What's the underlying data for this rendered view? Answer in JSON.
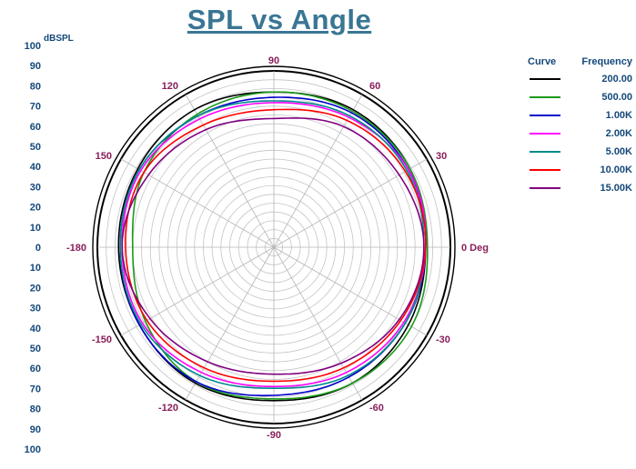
{
  "chart_data": {
    "type": "polar",
    "title": "SPL vs Angle",
    "radial_unit_label": "dBSPL",
    "radial_range": [
      0,
      100
    ],
    "radial_tick_labels": [
      "100",
      "90",
      "80",
      "70",
      "60",
      "50",
      "40",
      "30",
      "20",
      "10",
      "0",
      "10",
      "20",
      "30",
      "40",
      "50",
      "60",
      "70",
      "80",
      "90",
      "100"
    ],
    "angle_labels": [
      {
        "angle": 90,
        "text": "90"
      },
      {
        "angle": 60,
        "text": "60"
      },
      {
        "angle": 120,
        "text": "120"
      },
      {
        "angle": 30,
        "text": "30"
      },
      {
        "angle": 150,
        "text": "150"
      },
      {
        "angle": 0,
        "text": "0 Deg"
      },
      {
        "angle": 180,
        "text": "-180"
      },
      {
        "angle": -30,
        "text": "-30"
      },
      {
        "angle": -150,
        "text": "-150"
      },
      {
        "angle": -60,
        "text": "-60"
      },
      {
        "angle": -120,
        "text": "-120"
      },
      {
        "angle": -90,
        "text": "-90"
      }
    ],
    "legend": {
      "header_curve": "Curve",
      "header_frequency": "Frequency"
    },
    "series": [
      {
        "name": "200.00",
        "color": "#000000",
        "angles": [
          0,
          30,
          60,
          90,
          120,
          150,
          180,
          -150,
          -120,
          -90,
          -60,
          -30
        ],
        "values": [
          86,
          89,
          90,
          88,
          90,
          89,
          88,
          88,
          89,
          87,
          89,
          88
        ]
      },
      {
        "name": "500.00",
        "color": "#1a9a1a",
        "angles": [
          0,
          30,
          60,
          90,
          120,
          150,
          180,
          -150,
          -120,
          -90,
          -60,
          -30
        ],
        "values": [
          87,
          89,
          89,
          88,
          87,
          85,
          80,
          84,
          88,
          86,
          89,
          90
        ]
      },
      {
        "name": "1.00K",
        "color": "#0000cc",
        "angles": [
          0,
          30,
          60,
          90,
          120,
          150,
          180,
          -150,
          -120,
          -90,
          -60,
          -30
        ],
        "values": [
          86,
          88,
          88,
          85,
          86,
          88,
          87,
          88,
          88,
          84,
          85,
          86
        ]
      },
      {
        "name": "2.00K",
        "color": "#ff00ff",
        "angles": [
          0,
          30,
          60,
          90,
          120,
          150,
          180,
          -150,
          -120,
          -90,
          -60,
          -30
        ],
        "values": [
          86,
          88,
          85,
          82,
          84,
          87,
          86,
          86,
          82,
          79,
          82,
          85
        ]
      },
      {
        "name": "5.00K",
        "color": "#008b8b",
        "angles": [
          0,
          30,
          60,
          90,
          120,
          150,
          180,
          -150,
          -120,
          -90,
          -60,
          -30
        ],
        "values": [
          85,
          87,
          86,
          83,
          86,
          88,
          87,
          87,
          84,
          80,
          84,
          86
        ]
      },
      {
        "name": "10.00K",
        "color": "#ff0000",
        "angles": [
          0,
          30,
          60,
          90,
          120,
          150,
          180,
          -150,
          -120,
          -90,
          -60,
          -30
        ],
        "values": [
          86,
          86,
          83,
          78,
          80,
          85,
          84,
          83,
          79,
          76,
          79,
          83
        ]
      },
      {
        "name": "15.00K",
        "color": "#800080",
        "angles": [
          0,
          30,
          60,
          90,
          120,
          150,
          180,
          -150,
          -120,
          -90,
          -60,
          -30
        ],
        "values": [
          85,
          82,
          79,
          73,
          77,
          82,
          86,
          81,
          75,
          72,
          76,
          82
        ]
      }
    ]
  }
}
